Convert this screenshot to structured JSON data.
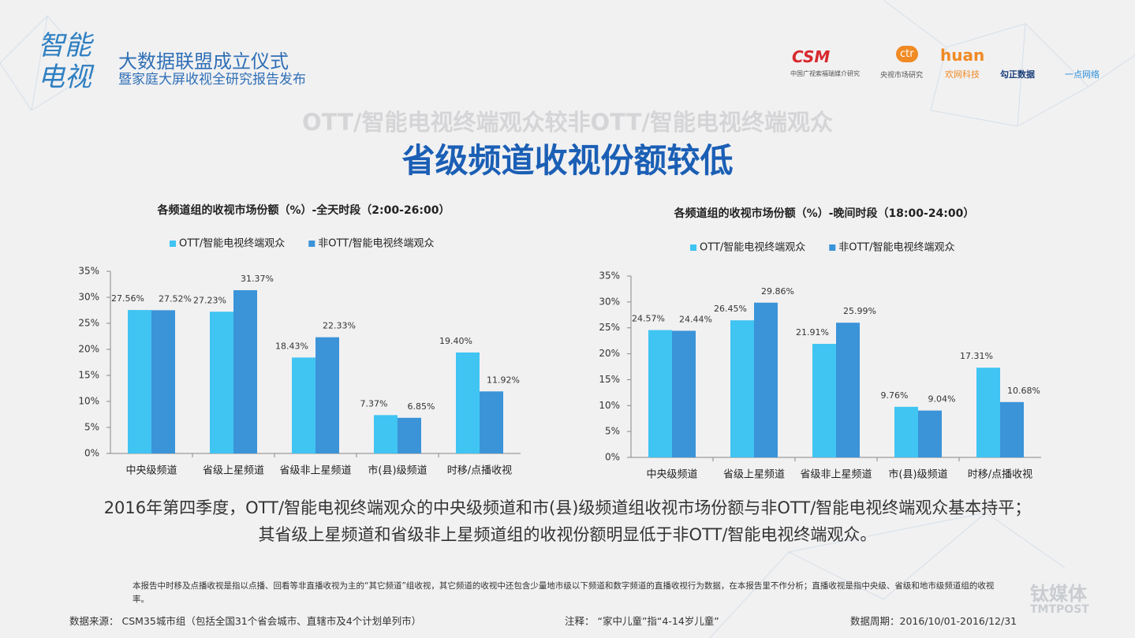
{
  "header": {
    "logo": "智能电视",
    "event_title": "大数据联盟成立仪式",
    "event_subtitle": "暨家庭大屏收视全研究报告发布",
    "partners": [
      "CSM",
      "中国广视索福瑞媒介研究",
      "ctr",
      "央视市场研究",
      "huan",
      "欢网科技",
      "勾正数据",
      "一点网络"
    ]
  },
  "slide": {
    "supertitle": "OTT/智能电视终端观众较非OTT/智能电视终端观众",
    "title": "省级频道收视份额较低"
  },
  "chart_data": [
    {
      "type": "bar",
      "title": "各频道组的收视市场份额（%）-全天时段（2:00-26:00）",
      "categories": [
        "中央级频道",
        "省级上星频道",
        "省级非上星频道",
        "市(县)级频道",
        "时移/点播收视"
      ],
      "series": [
        {
          "name": "OTT/智能电视终端观众",
          "color": "#40c4f2",
          "values": [
            27.56,
            27.23,
            18.43,
            7.37,
            19.4
          ],
          "value_labels": [
            "27.56%",
            "27.23%",
            "18.43%",
            "7.37%",
            "19.40%"
          ]
        },
        {
          "name": "非OTT/智能电视终端观众",
          "color": "#3b93d8",
          "values": [
            27.52,
            31.37,
            22.33,
            6.85,
            11.92
          ],
          "value_labels": [
            "27.52%",
            "31.37%",
            "22.33%",
            "6.85%",
            "11.92%"
          ]
        }
      ],
      "ylim": [
        0,
        35
      ],
      "yticks": [
        {
          "value": 0,
          "label": "0%"
        },
        {
          "value": 5,
          "label": "5%"
        },
        {
          "value": 10,
          "label": "10%"
        },
        {
          "value": 15,
          "label": "15%"
        },
        {
          "value": 20,
          "label": "20%"
        },
        {
          "value": 25,
          "label": "25%"
        },
        {
          "value": 30,
          "label": "30%"
        },
        {
          "value": 35,
          "label": "35%"
        }
      ],
      "legend": "top"
    },
    {
      "type": "bar",
      "title": "各频道组的收视市场份额（%）-晚间时段（18:00-24:00）",
      "categories": [
        "中央级频道",
        "省级上星频道",
        "省级非上星频道",
        "市(县)级频道",
        "时移/点播收视"
      ],
      "series": [
        {
          "name": "OTT/智能电视终端观众",
          "color": "#40c4f2",
          "values": [
            24.57,
            26.45,
            21.91,
            9.76,
            17.31
          ],
          "value_labels": [
            "24.57%",
            "26.45%",
            "21.91%",
            "9.76%",
            "17.31%"
          ]
        },
        {
          "name": "非OTT/智能电视终端观众",
          "color": "#3b93d8",
          "values": [
            24.44,
            29.86,
            25.99,
            9.04,
            10.68
          ],
          "value_labels": [
            "24.44%",
            "29.86%",
            "25.99%",
            "9.04%",
            "10.68%"
          ]
        }
      ],
      "ylim": [
        0,
        35
      ],
      "yticks": [
        {
          "value": 0,
          "label": "0%"
        },
        {
          "value": 5,
          "label": "5%"
        },
        {
          "value": 10,
          "label": "10%"
        },
        {
          "value": 15,
          "label": "15%"
        },
        {
          "value": 20,
          "label": "20%"
        },
        {
          "value": 25,
          "label": "25%"
        },
        {
          "value": 30,
          "label": "30%"
        },
        {
          "value": 35,
          "label": "35%"
        }
      ],
      "legend": "top"
    }
  ],
  "summary": [
    "2016年第四季度，OTT/智能电视终端观众的中央级频道和市(县)级频道组收视市场份额与非OTT/智能电视终端观众基本持平；",
    "其省级上星频道和省级非上星频道组的收视份额明显低于非OTT/智能电视终端观众。"
  ],
  "footer": {
    "footnote": "本报告中时移及点播收视是指以点播、回看等非直播收视为主的“其它频道”组收视，其它频道的收视中还包含少量地市级以下频道和数字频道的直播收视行为数据，在本报告里不作分析；直播收视是指中央级、省级和地市级频道组的收视率。",
    "source": "数据来源：  CSM35城市组（包括全国31个省会城市、直辖市及4个计划单列市）",
    "note": "注释：  “家中儿童”指“4-14岁儿童”",
    "period": "数据周期：2016/10/01-2016/12/31",
    "watermark": "钛媒体",
    "watermark_en": "TMTPOST"
  }
}
